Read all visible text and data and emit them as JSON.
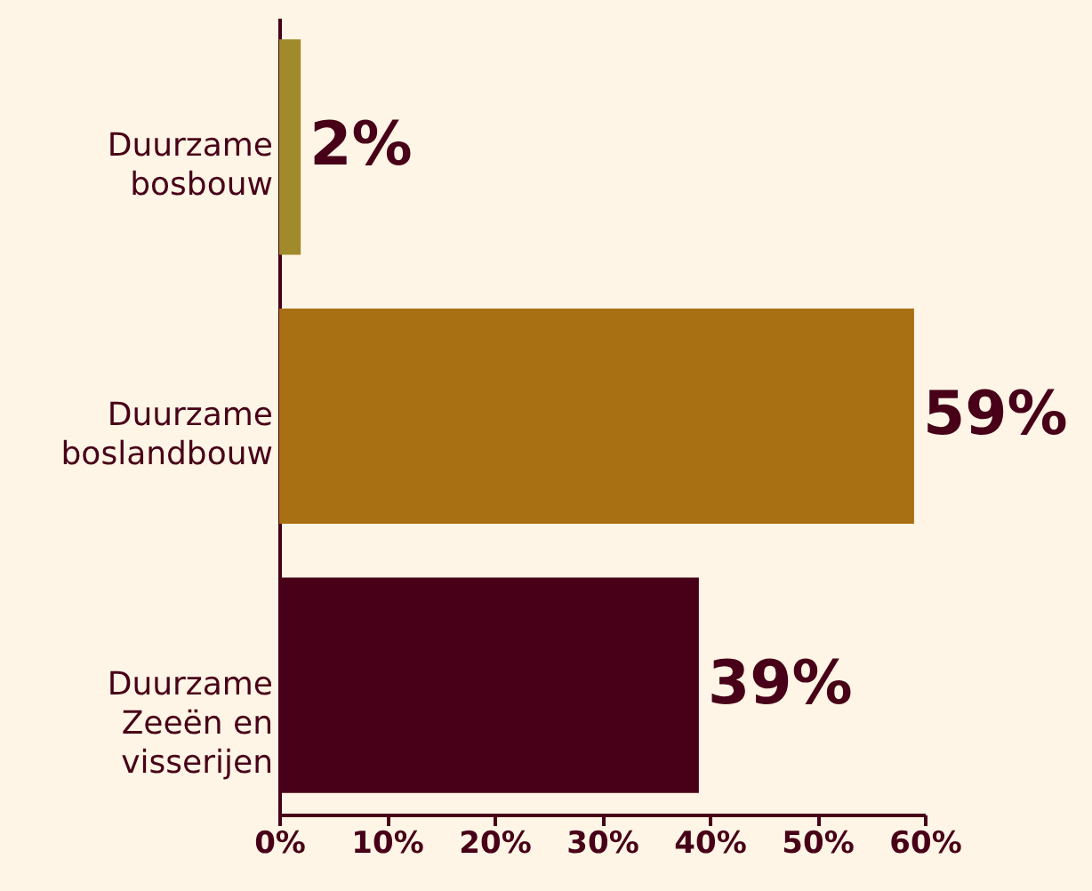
{
  "chart_data": {
    "type": "bar",
    "orientation": "horizontal",
    "categories": [
      "Duurzame\nbosbouw",
      "Duurzame\nboslandbouw",
      "Duurzame\nZeeën en\nvisserijen"
    ],
    "values": [
      2,
      59,
      39
    ],
    "colors": [
      "#a08a2a",
      "#a87012",
      "#480018"
    ],
    "value_labels": [
      "2%",
      "59%",
      "39%"
    ],
    "xlim": [
      0,
      60
    ],
    "xticks": [
      {
        "value": 0,
        "label": "0%"
      },
      {
        "value": 10,
        "label": "10%"
      },
      {
        "value": 20,
        "label": "20%"
      },
      {
        "value": 30,
        "label": "30%"
      },
      {
        "value": 40,
        "label": "40%"
      },
      {
        "value": 50,
        "label": "50%"
      },
      {
        "value": 60,
        "label": "60%"
      }
    ],
    "grid": false
  }
}
